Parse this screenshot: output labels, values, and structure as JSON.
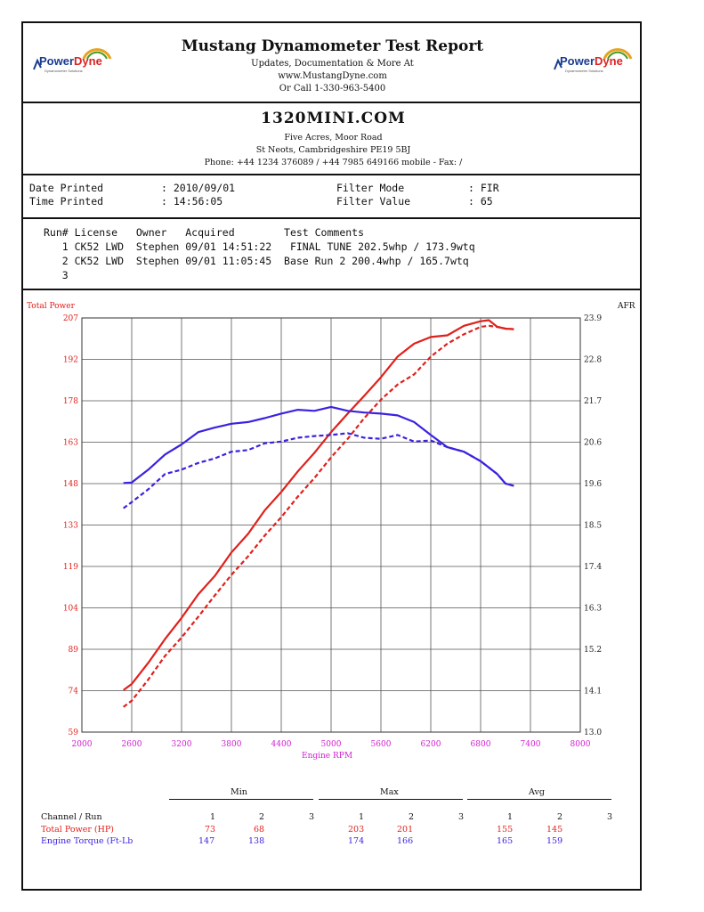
{
  "header": {
    "title": "Mustang Dynamometer Test Report",
    "line1": "Updates, Documentation & More At",
    "line2": "www.MustangDyne.com",
    "line3": "Or Call 1-330-963-5400",
    "logo_text_a": "Power",
    "logo_text_b": "Dyne",
    "logo_tag": "Dynamometer Solutions"
  },
  "shop": {
    "name": "1320MINI.COM",
    "address1": "Five Acres, Moor Road",
    "address2": "St Neots, Cambridgeshire  PE19 5BJ",
    "phone": "Phone: +44 1234 376089 / +44 7985 649166 mobile - Fax:  /"
  },
  "print_info": {
    "date_label": "Date Printed",
    "date_value": ": 2010/09/01",
    "time_label": "Time Printed",
    "time_value": ": 14:56:05",
    "filter_mode_label": "Filter Mode",
    "filter_mode_value": ": FIR",
    "filter_value_label": "Filter Value",
    "filter_value_value": ": 65"
  },
  "runs": {
    "header": "Run# License   Owner   Acquired        Test Comments",
    "rows": [
      "   1 CK52 LWD  Stephen 09/01 14:51:22   FINAL TUNE 202.5whp / 173.9wtq",
      "   2 CK52 LWD  Stephen 09/01 11:05:45  Base Run 2 200.4whp / 165.7wtq",
      "   3"
    ]
  },
  "chart_data": {
    "type": "line",
    "ylabel": "Total Power",
    "y2label": "AFR",
    "xlabel": "Engine RPM",
    "xlim": [
      2000,
      8000
    ],
    "ylim": [
      59,
      207
    ],
    "y2lim": [
      13.0,
      23.9
    ],
    "x_ticks": [
      "2000",
      "2600",
      "3200",
      "3800",
      "4400",
      "5000",
      "5600",
      "6200",
      "6800",
      "7400",
      "8000"
    ],
    "y_ticks": [
      "207",
      "192",
      "178",
      "163",
      "148",
      "133",
      "119",
      "104",
      "89",
      "74",
      "59"
    ],
    "y2_ticks": [
      "23.9",
      "22.8",
      "21.7",
      "20.6",
      "19.6",
      "18.5",
      "17.4",
      "16.3",
      "15.2",
      "14.1",
      "13.0"
    ],
    "grid": true,
    "colors": {
      "power": "#e0201b",
      "torque": "#3a22e0",
      "axis_left": "#e0201b",
      "axis_x": "#d020d0"
    },
    "series": [
      {
        "run": 1,
        "measure": "power",
        "style": "solid",
        "x": [
          2500,
          2600,
          2800,
          3000,
          3200,
          3400,
          3600,
          3800,
          4000,
          4200,
          4400,
          4600,
          4800,
          5000,
          5200,
          5400,
          5600,
          5800,
          6000,
          6200,
          6400,
          6600,
          6800,
          6900,
          7000,
          7100,
          7200
        ],
        "y": [
          74,
          76,
          84,
          92,
          100,
          108,
          115,
          123,
          130,
          138,
          145,
          152,
          159,
          166,
          173,
          179,
          186,
          193,
          198,
          200,
          201,
          204,
          206,
          206,
          204,
          203,
          203
        ]
      },
      {
        "run": 2,
        "measure": "power",
        "style": "dashed",
        "x": [
          2500,
          2600,
          2800,
          3000,
          3200,
          3400,
          3600,
          3800,
          4000,
          4200,
          4400,
          4600,
          4800,
          5000,
          5200,
          5400,
          5600,
          5800,
          6000,
          6200,
          6400,
          6600,
          6800,
          6900,
          7000,
          7100,
          7200
        ],
        "y": [
          68,
          70,
          78,
          86,
          93,
          100,
          108,
          115,
          122,
          129,
          136,
          143,
          150,
          157,
          164,
          171,
          178,
          183,
          187,
          193,
          198,
          201,
          204,
          204,
          204,
          203,
          203
        ]
      },
      {
        "run": 1,
        "measure": "torque",
        "style": "solid",
        "x": [
          2500,
          2600,
          2800,
          3000,
          3200,
          3400,
          3600,
          3800,
          4000,
          4200,
          4400,
          4600,
          4800,
          5000,
          5200,
          5400,
          5600,
          5800,
          6000,
          6200,
          6400,
          6600,
          6800,
          7000,
          7100,
          7200
        ],
        "y": [
          148,
          148,
          153,
          158,
          162,
          166,
          168,
          169,
          170,
          171,
          173,
          174,
          174,
          175,
          174,
          173,
          173,
          172,
          170,
          165,
          161,
          159,
          156,
          151,
          148,
          147
        ]
      },
      {
        "run": 2,
        "measure": "torque",
        "style": "dashed",
        "x": [
          2500,
          2600,
          2800,
          3000,
          3200,
          3400,
          3600,
          3800,
          4000,
          4200,
          4400,
          4600,
          4800,
          5000,
          5200,
          5400,
          5600,
          5800,
          6000,
          6200,
          6400,
          6600,
          6800,
          7000,
          7100,
          7200
        ],
        "y": [
          139,
          141,
          146,
          151,
          153,
          155,
          157,
          159,
          160,
          162,
          163,
          164,
          165,
          165,
          166,
          164,
          164,
          165,
          163,
          163,
          161,
          159,
          156,
          151,
          148,
          147
        ]
      }
    ]
  },
  "stats": {
    "min_label": "Min",
    "max_label": "Max",
    "avg_label": "Avg",
    "col_header_label": "Channel / Run",
    "run_cols": [
      "1",
      "2",
      "3"
    ],
    "rows": [
      {
        "label": "Total Power (HP)",
        "color": "#e0201b",
        "min": [
          "73",
          "68",
          ""
        ],
        "max": [
          "203",
          "201",
          ""
        ],
        "avg": [
          "155",
          "145",
          ""
        ]
      },
      {
        "label": "Engine Torque (Ft-Lb",
        "color": "#3a22e0",
        "min": [
          "147",
          "138",
          ""
        ],
        "max": [
          "174",
          "166",
          ""
        ],
        "avg": [
          "165",
          "159",
          ""
        ]
      }
    ]
  }
}
